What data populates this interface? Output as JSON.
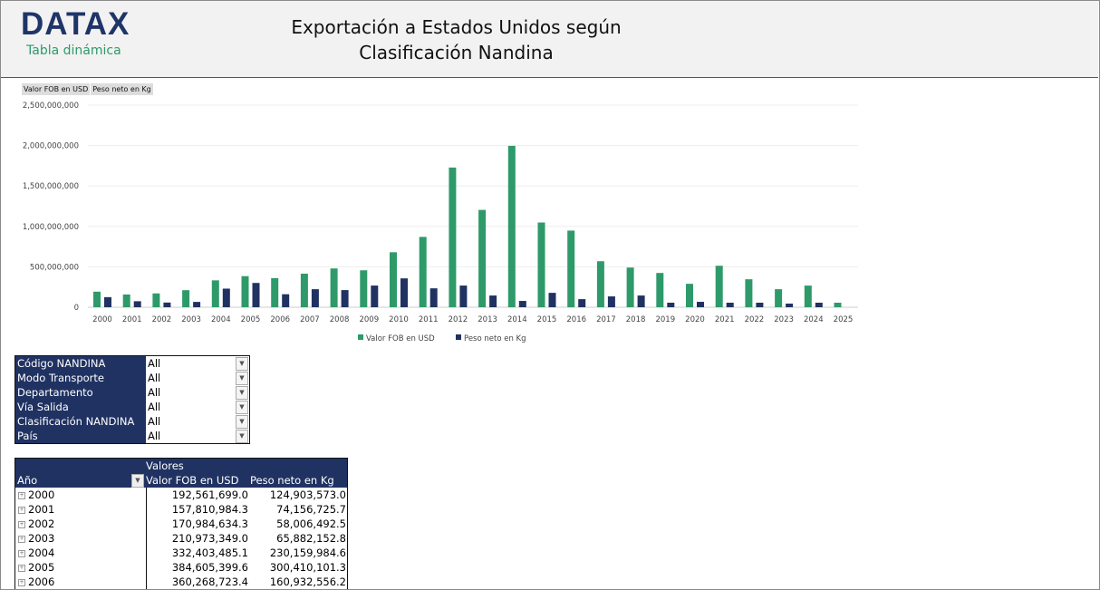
{
  "header": {
    "logo": "DATAX",
    "subtitle": "Tabla dinámica",
    "title_line1": "Exportación a Estados Unidos según",
    "title_line2": "Clasificación Nandina"
  },
  "field_buttons": [
    "Valor FOB en USD",
    "Peso neto en Kg"
  ],
  "chart_data": {
    "type": "bar",
    "categories": [
      "2000",
      "2001",
      "2002",
      "2003",
      "2004",
      "2005",
      "2006",
      "2007",
      "2008",
      "2009",
      "2010",
      "2011",
      "2012",
      "2013",
      "2014",
      "2015",
      "2016",
      "2017",
      "2018",
      "2019",
      "2020",
      "2021",
      "2022",
      "2023",
      "2024",
      "2025"
    ],
    "series": [
      {
        "name": "Valor FOB en USD",
        "color": "#2e9a6a",
        "values": [
          192561699,
          157810984,
          170984634,
          210973349,
          332403485,
          384605400,
          360268723,
          415000000,
          480000000,
          457000000,
          680000000,
          870000000,
          1728000000,
          1204000000,
          1996000000,
          1048000000,
          948000000,
          569000000,
          491000000,
          424000000,
          290000000,
          513000000,
          346000000,
          223000000,
          268000000,
          56000000
        ]
      },
      {
        "name": "Peso neto en Kg",
        "color": "#203262",
        "values": [
          124903573,
          74156726,
          58006493,
          65882153,
          230159985,
          300410101,
          160932556,
          223000000,
          212000000,
          268000000,
          357000000,
          234000000,
          268000000,
          145000000,
          78000000,
          178000000,
          100000000,
          134000000,
          145000000,
          56000000,
          67000000,
          56000000,
          56000000,
          45000000,
          56000000,
          0
        ]
      }
    ],
    "yticks": [
      "0",
      "500,000,000",
      "1,000,000,000",
      "1,500,000,000",
      "2,000,000,000",
      "2,500,000,000"
    ],
    "ylim": [
      0,
      2500000000
    ],
    "grid": true,
    "legend": "bottom"
  },
  "filters": [
    {
      "label": "Código NANDINA",
      "value": "All"
    },
    {
      "label": "Modo Transporte",
      "value": "All"
    },
    {
      "label": "Departamento",
      "value": "All"
    },
    {
      "label": "Vía Salida",
      "value": "All"
    },
    {
      "label": "Clasificación NANDINA",
      "value": "All"
    },
    {
      "label": "País",
      "value": "All"
    }
  ],
  "pivot": {
    "values_header": "Valores",
    "row_header": "Año",
    "col1": "Valor FOB en USD",
    "col2": "Peso neto en Kg",
    "rows": [
      {
        "year": "2000",
        "fob": "192,561,699.0",
        "kg": "124,903,573.0"
      },
      {
        "year": "2001",
        "fob": "157,810,984.3",
        "kg": "74,156,725.7"
      },
      {
        "year": "2002",
        "fob": "170,984,634.3",
        "kg": "58,006,492.5"
      },
      {
        "year": "2003",
        "fob": "210,973,349.0",
        "kg": "65,882,152.8"
      },
      {
        "year": "2004",
        "fob": "332,403,485.1",
        "kg": "230,159,984.6"
      },
      {
        "year": "2005",
        "fob": "384,605,399.6",
        "kg": "300,410,101.3"
      },
      {
        "year": "2006",
        "fob": "360,268,723.4",
        "kg": "160,932,556.2"
      }
    ]
  }
}
